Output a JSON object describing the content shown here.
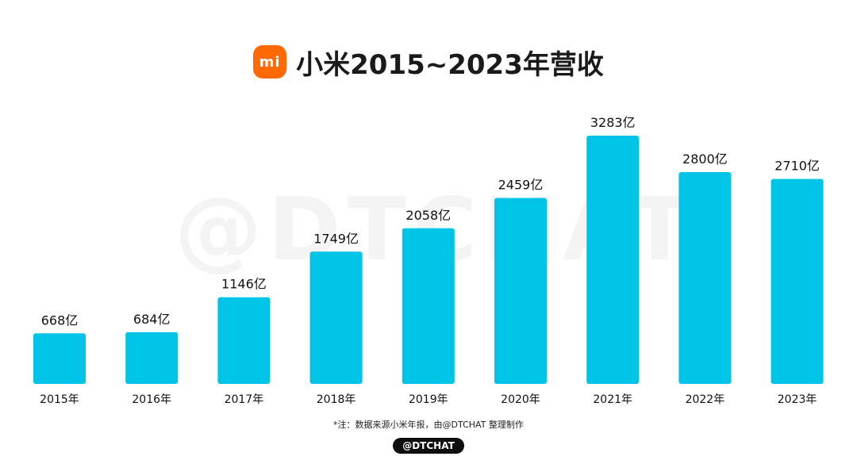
{
  "header": {
    "logo_text": "mi",
    "title": "小米2015~2023年营收"
  },
  "watermark": "@DTCHAT",
  "footnote": "*注：数据来源小米年报，由@DTCHAT 整理制作",
  "badge": "@DTCHAT",
  "colors": {
    "bar": "#00c3e8",
    "logo": "#ff6900"
  },
  "chart_data": {
    "type": "bar",
    "title": "小米2015~2023年营收",
    "categories": [
      "2015年",
      "2016年",
      "2017年",
      "2018年",
      "2019年",
      "2020年",
      "2021年",
      "2022年",
      "2023年"
    ],
    "values": [
      668,
      684,
      1146,
      1749,
      2058,
      2459,
      3283,
      2800,
      2710
    ],
    "value_labels": [
      "668亿",
      "684亿",
      "1146亿",
      "1749亿",
      "2058亿",
      "2459亿",
      "3283亿",
      "2800亿",
      "2710亿"
    ],
    "xlabel": "",
    "ylabel": "",
    "grid": false
  }
}
